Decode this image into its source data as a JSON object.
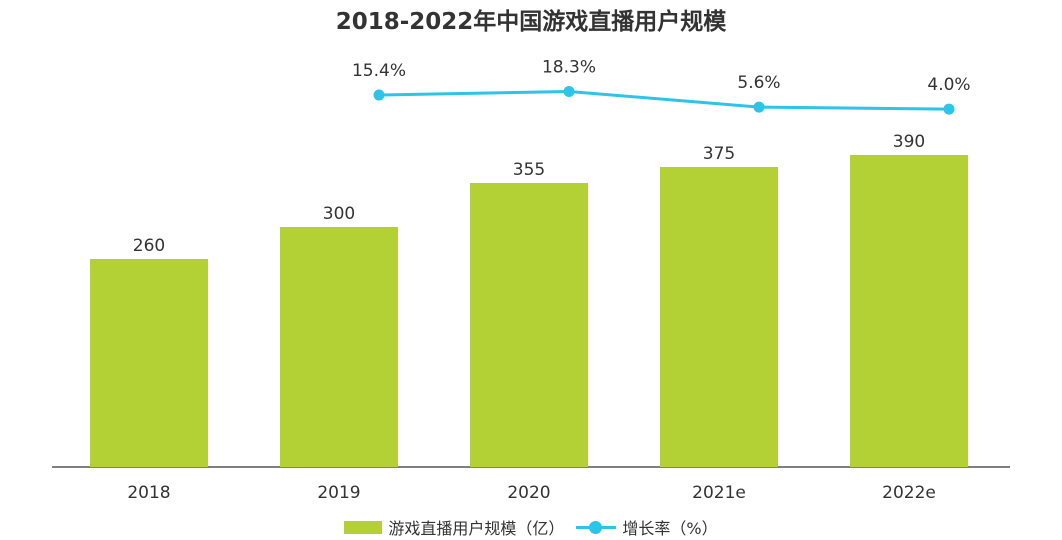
{
  "chart_data": {
    "type": "bar",
    "title": "2018-2022年中国游戏直播用户规模",
    "categories": [
      "2018",
      "2019",
      "2020",
      "2021e",
      "2022e"
    ],
    "series": [
      {
        "name": "游戏直播用户规模（亿）",
        "type": "bar",
        "values": [
          260,
          300,
          355,
          375,
          390
        ],
        "labels": [
          "260",
          "300",
          "355",
          "375",
          "390"
        ],
        "color": "#b3d134"
      },
      {
        "name": "增长率（%）",
        "type": "line",
        "values": [
          null,
          15.4,
          18.3,
          5.6,
          4.0
        ],
        "labels": [
          "",
          "15.4%",
          "18.3%",
          "5.6%",
          "4.0%"
        ],
        "color": "#2ec3e8"
      }
    ],
    "ylim": [
      0,
      400
    ],
    "grid": false,
    "legend": "bottom"
  }
}
